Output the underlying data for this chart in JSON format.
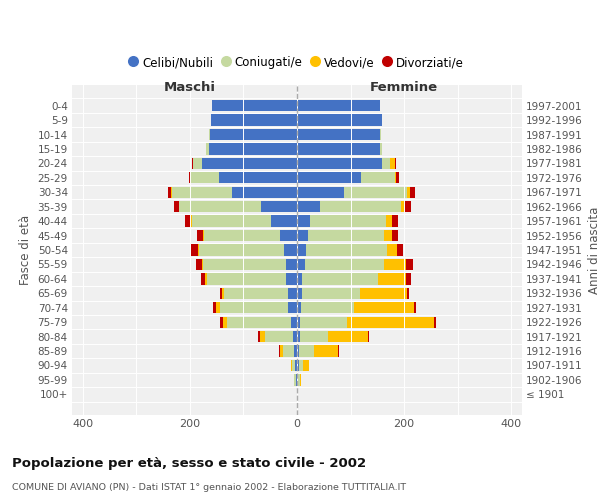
{
  "age_groups": [
    "100+",
    "95-99",
    "90-94",
    "85-89",
    "80-84",
    "75-79",
    "70-74",
    "65-69",
    "60-64",
    "55-59",
    "50-54",
    "45-49",
    "40-44",
    "35-39",
    "30-34",
    "25-29",
    "20-24",
    "15-19",
    "10-14",
    "5-9",
    "0-4"
  ],
  "birth_years": [
    "≤ 1901",
    "1902-1906",
    "1907-1911",
    "1912-1916",
    "1917-1921",
    "1922-1926",
    "1927-1931",
    "1932-1936",
    "1937-1941",
    "1942-1946",
    "1947-1951",
    "1952-1956",
    "1957-1961",
    "1962-1966",
    "1967-1971",
    "1972-1976",
    "1977-1981",
    "1982-1986",
    "1987-1991",
    "1992-1996",
    "1997-2001"
  ],
  "males_celibi": [
    0,
    2,
    3,
    5,
    8,
    12,
    16,
    16,
    20,
    20,
    25,
    32,
    48,
    68,
    122,
    145,
    178,
    165,
    162,
    160,
    158
  ],
  "males_coniugati": [
    0,
    3,
    6,
    22,
    52,
    118,
    128,
    120,
    148,
    155,
    158,
    142,
    148,
    152,
    112,
    52,
    16,
    4,
    2,
    0,
    0
  ],
  "males_vedovi": [
    0,
    0,
    2,
    5,
    10,
    8,
    8,
    4,
    3,
    3,
    2,
    1,
    1,
    1,
    1,
    2,
    0,
    0,
    0,
    0,
    0
  ],
  "males_divorziati": [
    0,
    0,
    0,
    2,
    3,
    5,
    5,
    3,
    8,
    10,
    12,
    12,
    12,
    8,
    5,
    3,
    2,
    0,
    0,
    0,
    0
  ],
  "females_nubili": [
    0,
    2,
    3,
    4,
    5,
    6,
    8,
    10,
    10,
    14,
    16,
    20,
    25,
    42,
    88,
    120,
    158,
    155,
    155,
    158,
    155
  ],
  "females_coniugate": [
    0,
    3,
    8,
    28,
    52,
    88,
    98,
    108,
    142,
    148,
    152,
    142,
    142,
    152,
    118,
    62,
    16,
    4,
    2,
    0,
    0
  ],
  "females_vedove": [
    0,
    3,
    12,
    45,
    75,
    162,
    112,
    88,
    52,
    42,
    18,
    15,
    10,
    8,
    5,
    3,
    8,
    0,
    0,
    0,
    0
  ],
  "females_divorziate": [
    0,
    0,
    0,
    2,
    2,
    3,
    5,
    3,
    8,
    12,
    12,
    12,
    12,
    10,
    10,
    5,
    2,
    0,
    0,
    0,
    0
  ],
  "color_celibi": "#4472c4",
  "color_coniugati": "#c5d9a0",
  "color_vedovi": "#ffc000",
  "color_divorziati": "#c00000",
  "title": "Popolazione per età, sesso e stato civile - 2002",
  "subtitle": "COMUNE DI AVIANO (PN) - Dati ISTAT 1° gennaio 2002 - Elaborazione TUTTITALIA.IT",
  "label_maschi": "Maschi",
  "label_femmine": "Femmine",
  "label_fasce": "Fasce di età",
  "label_anni": "Anni di nascita",
  "legend_labels": [
    "Celibi/Nubili",
    "Coniugati/e",
    "Vedovi/e",
    "Divorziati/e"
  ],
  "xlim": 420,
  "bg_color": "#ffffff",
  "plot_bg": "#f0f0f0"
}
